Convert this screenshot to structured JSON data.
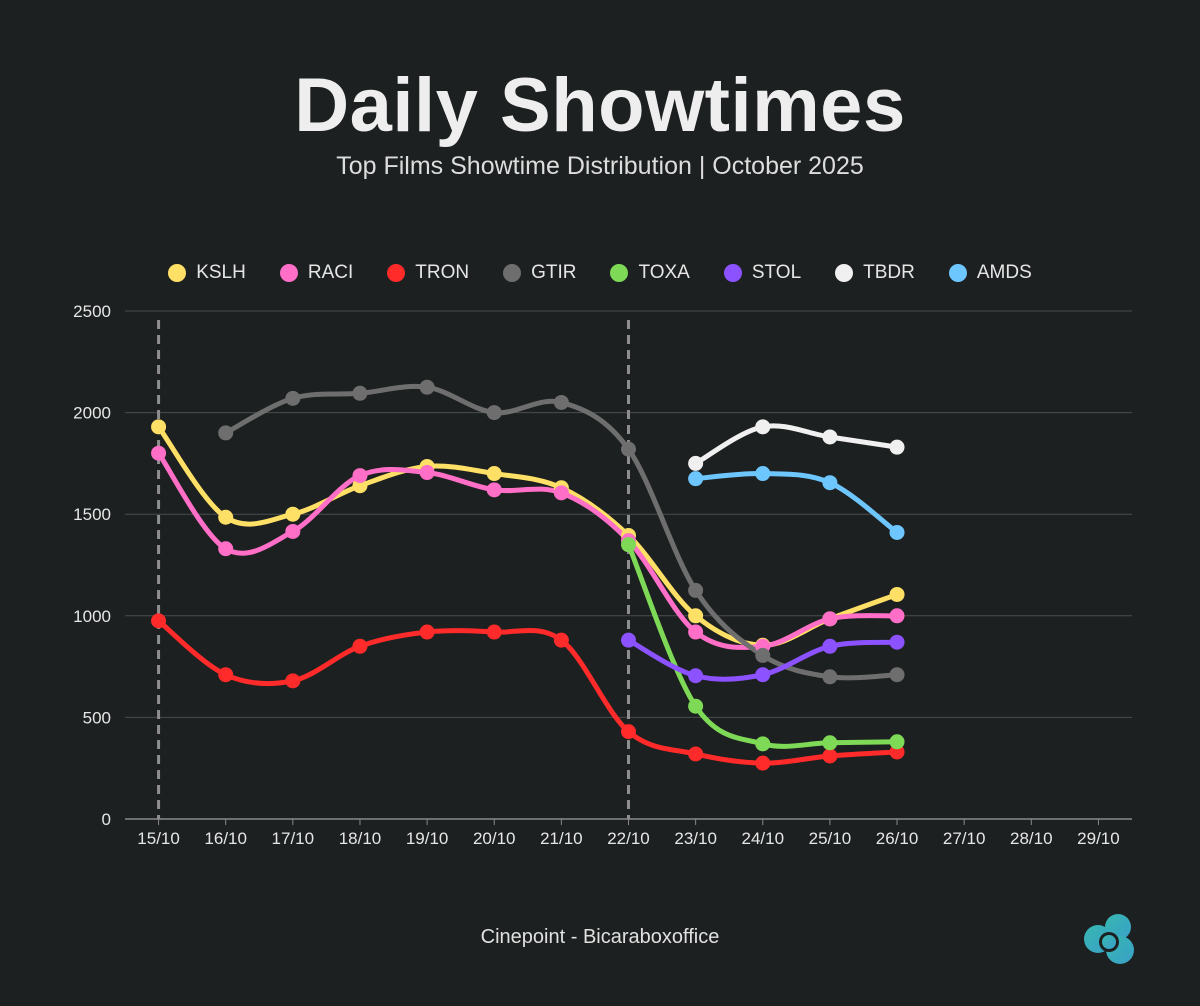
{
  "header": {
    "title": "Daily Showtimes",
    "subtitle": "Top Films Showtime Distribution | October 2025"
  },
  "footer": {
    "source": "Cinepoint - Bicaraboxoffice"
  },
  "logo": {
    "icon": "cloud-logo-icon",
    "color": "#3fb5b5"
  },
  "chart_data": {
    "type": "line",
    "title": "Daily Showtimes",
    "xlabel": "",
    "ylabel": "",
    "categories": [
      "15/10",
      "16/10",
      "17/10",
      "18/10",
      "19/10",
      "20/10",
      "21/10",
      "22/10",
      "23/10",
      "24/10",
      "25/10",
      "26/10",
      "27/10",
      "28/10",
      "29/10"
    ],
    "ylim": [
      0,
      2500
    ],
    "yticks": [
      0,
      500,
      1000,
      1500,
      2000,
      2500
    ],
    "grid": true,
    "legend_position": "top",
    "markers": [
      "15/10",
      "22/10"
    ],
    "series": [
      {
        "name": "KSLH",
        "color": "#ffe066",
        "values": [
          1930,
          1485,
          1500,
          1640,
          1735,
          1700,
          1630,
          1395,
          1000,
          855,
          985,
          1105,
          null,
          null,
          null
        ]
      },
      {
        "name": "RACI",
        "color": "#ff6ec7",
        "values": [
          1800,
          1330,
          1415,
          1690,
          1705,
          1620,
          1605,
          1370,
          920,
          850,
          985,
          1000,
          null,
          null,
          null
        ]
      },
      {
        "name": "TRON",
        "color": "#ff2a2a",
        "values": [
          975,
          710,
          680,
          850,
          920,
          920,
          880,
          430,
          320,
          275,
          310,
          330,
          null,
          null,
          null
        ]
      },
      {
        "name": "GTIR",
        "color": "#6e6e6e",
        "values": [
          null,
          1900,
          2070,
          2095,
          2125,
          2000,
          2050,
          1820,
          1125,
          805,
          700,
          710,
          null,
          null,
          null
        ]
      },
      {
        "name": "TOXA",
        "color": "#7ed957",
        "values": [
          null,
          null,
          null,
          null,
          null,
          null,
          null,
          1350,
          555,
          370,
          375,
          380,
          null,
          null,
          null
        ]
      },
      {
        "name": "STOL",
        "color": "#8c52ff",
        "values": [
          null,
          null,
          null,
          null,
          null,
          null,
          null,
          880,
          705,
          710,
          850,
          870,
          null,
          null,
          null
        ]
      },
      {
        "name": "TBDR",
        "color": "#f0f0f0",
        "values": [
          null,
          null,
          null,
          null,
          null,
          null,
          null,
          null,
          1750,
          1930,
          1880,
          1830,
          null,
          null,
          null
        ]
      },
      {
        "name": "AMDS",
        "color": "#6ec6ff",
        "values": [
          null,
          null,
          null,
          null,
          null,
          null,
          null,
          null,
          1675,
          1700,
          1655,
          1410,
          null,
          null,
          null
        ]
      }
    ]
  }
}
